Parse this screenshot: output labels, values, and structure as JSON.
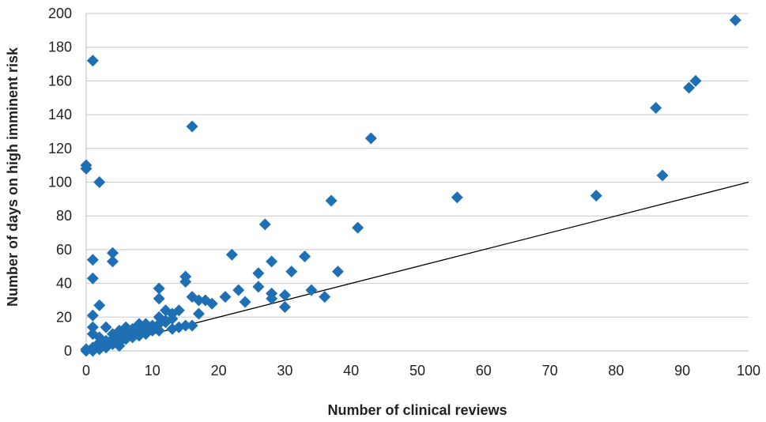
{
  "chart_data": {
    "type": "scatter",
    "title": "",
    "xlabel": "Number of clinical reviews",
    "ylabel": "Number of days on high imminent risk",
    "xlim": [
      0,
      100
    ],
    "ylim": [
      0,
      200
    ],
    "xticks": [
      0,
      10,
      20,
      30,
      40,
      50,
      60,
      70,
      80,
      90,
      100
    ],
    "yticks": [
      0,
      20,
      40,
      60,
      80,
      100,
      120,
      140,
      160,
      180,
      200
    ],
    "grid": "horizontal",
    "marker": "diamond",
    "marker_color": "#1f6fb5",
    "reference_line": {
      "x": [
        0,
        100
      ],
      "y": [
        0,
        100
      ],
      "color": "#000000"
    },
    "series": [
      {
        "points": [
          [
            0,
            110
          ],
          [
            0,
            108
          ],
          [
            1,
            172
          ],
          [
            2,
            100
          ],
          [
            16,
            133
          ],
          [
            43,
            126
          ],
          [
            37,
            89
          ],
          [
            56,
            91
          ],
          [
            77,
            92
          ],
          [
            86,
            144
          ],
          [
            87,
            104
          ],
          [
            91,
            156
          ],
          [
            92,
            160
          ],
          [
            98,
            196
          ],
          [
            41,
            73
          ],
          [
            27,
            75
          ],
          [
            1,
            54
          ],
          [
            1,
            43
          ],
          [
            4,
            58
          ],
          [
            4,
            53
          ],
          [
            22,
            57
          ],
          [
            28,
            53
          ],
          [
            33,
            56
          ],
          [
            26,
            46
          ],
          [
            31,
            47
          ],
          [
            38,
            47
          ],
          [
            15,
            44
          ],
          [
            15,
            41
          ],
          [
            11,
            37
          ],
          [
            26,
            38
          ],
          [
            34,
            36
          ],
          [
            23,
            36
          ],
          [
            28,
            34
          ],
          [
            30,
            33
          ],
          [
            28,
            31
          ],
          [
            36,
            32
          ],
          [
            21,
            32
          ],
          [
            24,
            29
          ],
          [
            30,
            26
          ],
          [
            16,
            32
          ],
          [
            17,
            30
          ],
          [
            18,
            30
          ],
          [
            19,
            28
          ],
          [
            11,
            31
          ],
          [
            17,
            22
          ],
          [
            2,
            27
          ],
          [
            1,
            21
          ],
          [
            12,
            24
          ],
          [
            13,
            22
          ],
          [
            11,
            20
          ],
          [
            14,
            24
          ],
          [
            12,
            18
          ],
          [
            10,
            15
          ],
          [
            9,
            16
          ],
          [
            8,
            16
          ],
          [
            16,
            15
          ],
          [
            15,
            15
          ],
          [
            14,
            14
          ],
          [
            13,
            13
          ],
          [
            11,
            12
          ],
          [
            10,
            12
          ],
          [
            9,
            10
          ],
          [
            8,
            9
          ],
          [
            7,
            8
          ],
          [
            6,
            14
          ],
          [
            5,
            12
          ],
          [
            4,
            10
          ],
          [
            3,
            14
          ],
          [
            2,
            8
          ],
          [
            1,
            14
          ],
          [
            1,
            10
          ],
          [
            2,
            5
          ],
          [
            3,
            3
          ],
          [
            4,
            4
          ],
          [
            5,
            3
          ],
          [
            6,
            7
          ],
          [
            1,
            2
          ],
          [
            0,
            1
          ],
          [
            0,
            0
          ],
          [
            1,
            0
          ],
          [
            2,
            1
          ],
          [
            3,
            6
          ],
          [
            4,
            7
          ],
          [
            5,
            8
          ],
          [
            6,
            10
          ],
          [
            7,
            11
          ],
          [
            7,
            13
          ],
          [
            9,
            13
          ],
          [
            10,
            14
          ],
          [
            11,
            16
          ],
          [
            12,
            17
          ],
          [
            13,
            19
          ],
          [
            2,
            3
          ],
          [
            3,
            2
          ],
          [
            5,
            5
          ],
          [
            8,
            11
          ]
        ]
      }
    ]
  }
}
